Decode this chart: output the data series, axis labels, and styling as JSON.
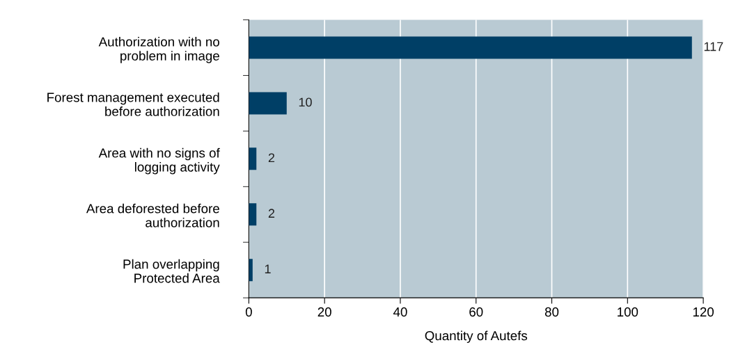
{
  "chart_data": {
    "type": "bar",
    "orientation": "horizontal",
    "xlabel": "Quantity of Autefs",
    "categories": [
      "Authorization with no\nproblem in image",
      "Forest management executed\nbefore authorization",
      "Area with no signs of\nlogging activity",
      "Area deforested before\nauthorization",
      "Plan overlapping\nProtected Area"
    ],
    "values": [
      117,
      10,
      2,
      2,
      1
    ],
    "color": "#003f66",
    "data_labels": true,
    "xlim": [
      0,
      120
    ],
    "xticks": [
      0,
      20,
      40,
      60,
      80,
      100,
      120
    ],
    "grid": "x"
  }
}
